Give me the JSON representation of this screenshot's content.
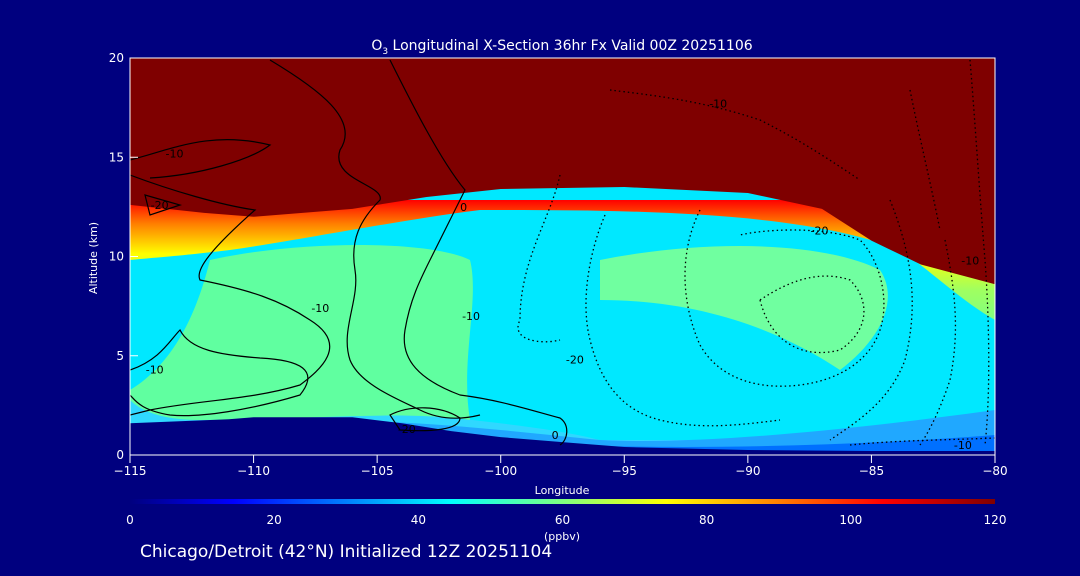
{
  "footer": "Chicago/Detroit (42°N) Initialized 12Z 20251104",
  "chart_data": {
    "type": "heatmap",
    "title_prefix": "O",
    "title_subscript": "3",
    "title_rest": " Longitudinal X-Section 36hr  Fx Valid 00Z 20251106",
    "xlabel": "Longitude",
    "ylabel": "Altitude (km)",
    "xlim": [
      -115,
      -80
    ],
    "ylim": [
      0,
      20
    ],
    "xticks": [
      -115,
      -110,
      -105,
      -100,
      -95,
      -90,
      -85,
      -80
    ],
    "yticks": [
      0,
      5,
      10,
      15,
      20
    ],
    "colorbar": {
      "unit": "(ppbv)",
      "ticks": [
        0,
        20,
        40,
        60,
        80,
        100,
        120
      ],
      "range": [
        0,
        120
      ]
    },
    "field": {
      "description_units": "ppbv",
      "tropopause_km": [
        {
          "lon": -115,
          "km": 12.6
        },
        {
          "lon": -112,
          "km": 12.2
        },
        {
          "lon": -110,
          "km": 12.0
        },
        {
          "lon": -106,
          "km": 12.4
        },
        {
          "lon": -103,
          "km": 13.0
        },
        {
          "lon": -100,
          "km": 13.4
        },
        {
          "lon": -95,
          "km": 13.5
        },
        {
          "lon": -90,
          "km": 13.2
        },
        {
          "lon": -87,
          "km": 12.4
        },
        {
          "lon": -85,
          "km": 10.8
        },
        {
          "lon": -83,
          "km": 9.6
        },
        {
          "lon": -80,
          "km": 8.6
        }
      ],
      "terrain_km": [
        {
          "lon": -115,
          "km": 1.6
        },
        {
          "lon": -111,
          "km": 1.8
        },
        {
          "lon": -110,
          "km": 1.9
        },
        {
          "lon": -106,
          "km": 1.9
        },
        {
          "lon": -104,
          "km": 1.6
        },
        {
          "lon": -102,
          "km": 1.2
        },
        {
          "lon": -100,
          "km": 0.9
        },
        {
          "lon": -97,
          "km": 0.6
        },
        {
          "lon": -95,
          "km": 0.4
        },
        {
          "lon": -90,
          "km": 0.25
        },
        {
          "lon": -85,
          "km": 0.2
        },
        {
          "lon": -80,
          "km": 0.2
        }
      ]
    },
    "contour_labels": [
      {
        "text": "-10",
        "lon": -101.2,
        "km": 6.8
      },
      {
        "text": "-20",
        "lon": -87.1,
        "km": 11.1
      },
      {
        "text": "-10",
        "lon": -91.2,
        "km": 17.5
      },
      {
        "text": "-10",
        "lon": -81.0,
        "km": 9.6
      },
      {
        "text": "-20",
        "lon": -97.0,
        "km": 4.6
      },
      {
        "text": "-10",
        "lon": -81.3,
        "km": 0.3
      },
      {
        "text": "-20",
        "lon": -113.8,
        "km": 12.4
      },
      {
        "text": "-10",
        "lon": -107.3,
        "km": 7.2
      },
      {
        "text": "-10",
        "lon": -114.0,
        "km": 4.1
      },
      {
        "text": "-10",
        "lon": -113.2,
        "km": 15.0
      },
      {
        "text": "-20",
        "lon": -103.8,
        "km": 1.1
      },
      {
        "text": "0",
        "lon": -101.5,
        "km": 12.3
      },
      {
        "text": "0",
        "lon": -97.8,
        "km": 0.8
      }
    ]
  }
}
